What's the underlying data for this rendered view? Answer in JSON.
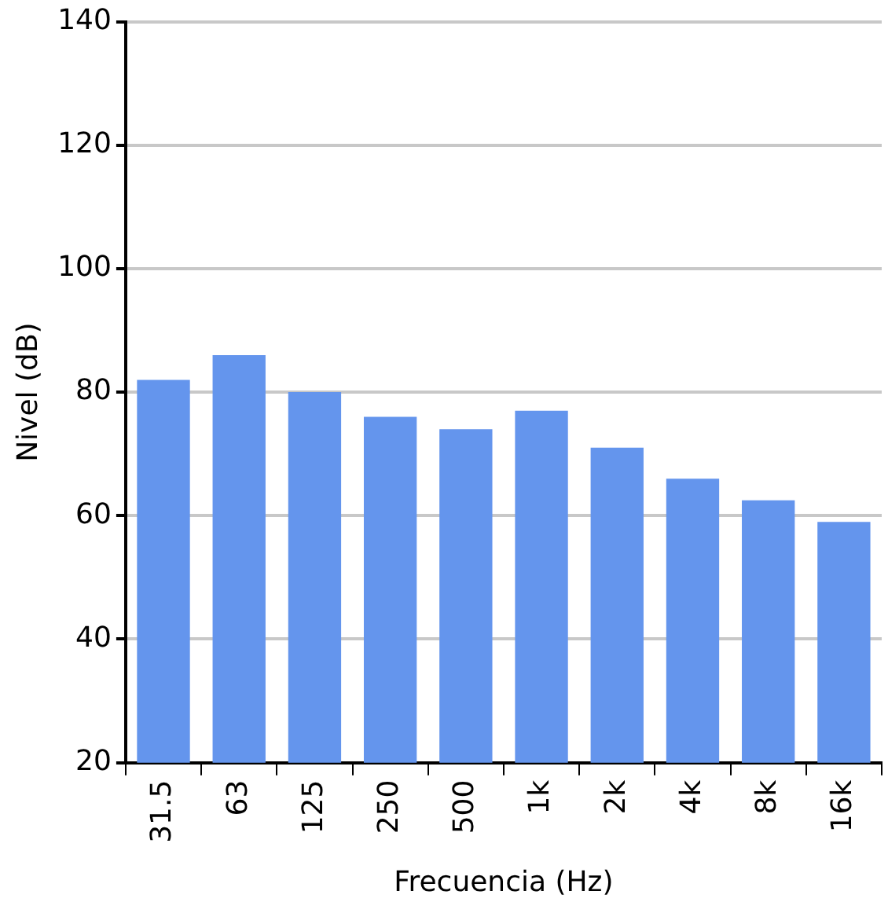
{
  "chart_data": {
    "type": "bar",
    "xlabel": "Frecuencia (Hz)",
    "ylabel": "Nivel (dB)",
    "categories": [
      "31.5",
      "63",
      "125",
      "250",
      "500",
      "1k",
      "2k",
      "4k",
      "8k",
      "16k"
    ],
    "values": [
      82,
      86,
      80,
      76,
      74,
      77,
      71,
      66,
      62.5,
      59
    ],
    "color": "#6495ed",
    "ylim": [
      20,
      140
    ],
    "yticks": [
      20,
      40,
      60,
      80,
      100,
      120,
      140
    ],
    "grid": "y",
    "legend": false
  }
}
